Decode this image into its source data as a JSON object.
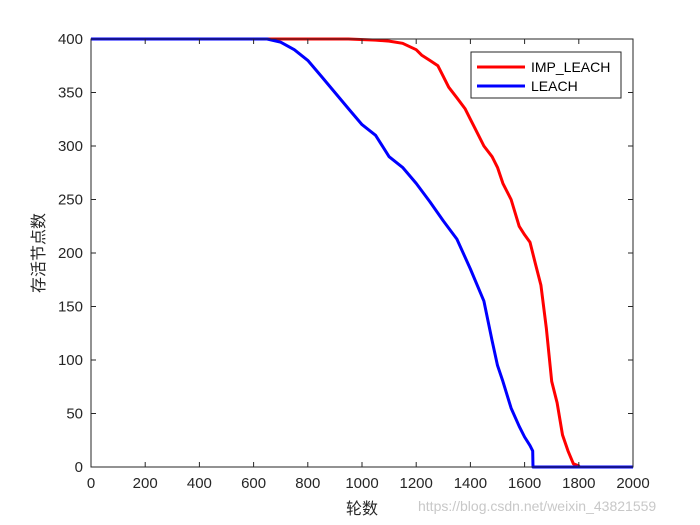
{
  "chart_data": {
    "type": "line",
    "title": "",
    "xlabel": "轮数",
    "ylabel": "存活节点数",
    "xlim": [
      0,
      2000
    ],
    "ylim": [
      0,
      400
    ],
    "xticks": [
      0,
      200,
      400,
      600,
      800,
      1000,
      1200,
      1400,
      1600,
      1800,
      2000
    ],
    "yticks": [
      0,
      50,
      100,
      150,
      200,
      250,
      300,
      350,
      400
    ],
    "grid": false,
    "legend_position": "top-right",
    "series": [
      {
        "name": "IMP_LEACH",
        "color": "#ff0000",
        "x": [
          0,
          700,
          950,
          1050,
          1100,
          1150,
          1200,
          1220,
          1250,
          1280,
          1300,
          1320,
          1350,
          1380,
          1400,
          1420,
          1450,
          1480,
          1500,
          1520,
          1550,
          1580,
          1600,
          1620,
          1640,
          1660,
          1680,
          1700,
          1720,
          1740,
          1760,
          1780,
          1800,
          1801,
          2000
        ],
        "y": [
          400,
          400,
          400,
          399,
          398,
          396,
          390,
          385,
          380,
          375,
          365,
          355,
          345,
          335,
          325,
          315,
          300,
          290,
          280,
          265,
          250,
          225,
          217,
          210,
          190,
          170,
          130,
          80,
          60,
          30,
          15,
          3,
          1,
          0,
          0
        ]
      },
      {
        "name": "LEACH",
        "color": "#0000ff",
        "x": [
          0,
          650,
          700,
          750,
          800,
          850,
          900,
          950,
          1000,
          1050,
          1100,
          1150,
          1200,
          1250,
          1300,
          1350,
          1400,
          1450,
          1480,
          1500,
          1520,
          1550,
          1580,
          1600,
          1620,
          1630,
          1631,
          2000
        ],
        "y": [
          400,
          400,
          397,
          390,
          380,
          365,
          350,
          335,
          320,
          310,
          290,
          280,
          265,
          248,
          230,
          213,
          185,
          155,
          118,
          95,
          80,
          55,
          38,
          28,
          20,
          15,
          0,
          0
        ]
      }
    ]
  },
  "watermark": "https://blog.csdn.net/weixin_43821559"
}
